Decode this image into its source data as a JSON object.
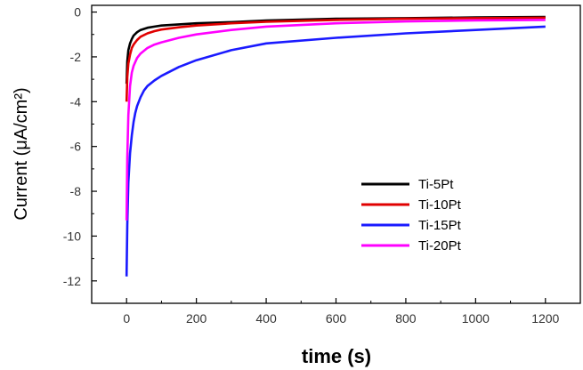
{
  "chart_data": {
    "type": "line",
    "xlabel": "time (s)",
    "ylabel": "Current (μA/cm²)",
    "xlim": [
      -100,
      1300
    ],
    "ylim": [
      -13,
      0.3
    ],
    "x_ticks": [
      0,
      200,
      400,
      600,
      800,
      1000,
      1200
    ],
    "y_ticks": [
      0,
      -2,
      -4,
      -6,
      -8,
      -10,
      -12
    ],
    "grid": false,
    "legend_position": "bottom-right",
    "series": [
      {
        "name": "Ti-5Pt",
        "color": "#000000",
        "x": [
          0,
          2,
          5,
          10,
          15,
          20,
          30,
          40,
          60,
          80,
          100,
          150,
          200,
          300,
          400,
          600,
          800,
          1000,
          1200
        ],
        "y": [
          -3.2,
          -2.2,
          -1.7,
          -1.4,
          -1.2,
          -1.05,
          -0.9,
          -0.8,
          -0.7,
          -0.65,
          -0.6,
          -0.55,
          -0.5,
          -0.45,
          -0.38,
          -0.3,
          -0.27,
          -0.24,
          -0.22
        ]
      },
      {
        "name": "Ti-10Pt",
        "color": "#e00000",
        "x": [
          0,
          2,
          5,
          10,
          15,
          20,
          30,
          40,
          60,
          80,
          100,
          150,
          200,
          300,
          400,
          600,
          800,
          1000,
          1200
        ],
        "y": [
          -4.0,
          -2.9,
          -2.3,
          -1.9,
          -1.6,
          -1.45,
          -1.25,
          -1.1,
          -0.95,
          -0.85,
          -0.78,
          -0.68,
          -0.6,
          -0.5,
          -0.43,
          -0.35,
          -0.3,
          -0.27,
          -0.25
        ]
      },
      {
        "name": "Ti-15Pt",
        "color": "#1a1aff",
        "x": [
          0,
          2,
          5,
          10,
          15,
          20,
          25,
          30,
          40,
          50,
          60,
          80,
          100,
          150,
          200,
          300,
          400,
          600,
          800,
          1000,
          1200
        ],
        "y": [
          -11.8,
          -9.5,
          -7.6,
          -6.3,
          -5.5,
          -4.9,
          -4.5,
          -4.2,
          -3.8,
          -3.5,
          -3.3,
          -3.05,
          -2.85,
          -2.45,
          -2.15,
          -1.7,
          -1.4,
          -1.15,
          -0.95,
          -0.8,
          -0.65
        ]
      },
      {
        "name": "Ti-20Pt",
        "color": "#ff00ff",
        "x": [
          0,
          2,
          5,
          10,
          15,
          20,
          30,
          40,
          60,
          80,
          100,
          150,
          200,
          300,
          400,
          600,
          800,
          1000,
          1200
        ],
        "y": [
          -9.3,
          -6.5,
          -4.6,
          -3.3,
          -2.7,
          -2.4,
          -2.05,
          -1.85,
          -1.6,
          -1.45,
          -1.35,
          -1.15,
          -1.0,
          -0.8,
          -0.65,
          -0.5,
          -0.42,
          -0.37,
          -0.35
        ]
      }
    ]
  }
}
